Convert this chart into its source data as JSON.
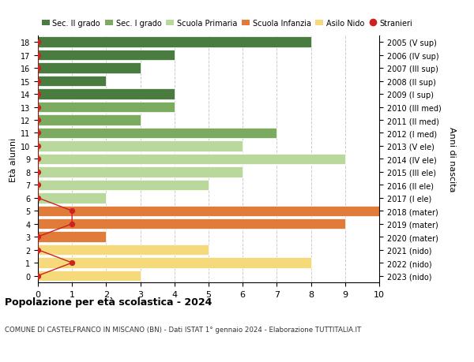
{
  "ages": [
    18,
    17,
    16,
    15,
    14,
    13,
    12,
    11,
    10,
    9,
    8,
    7,
    6,
    5,
    4,
    3,
    2,
    1,
    0
  ],
  "years": [
    "2005 (V sup)",
    "2006 (IV sup)",
    "2007 (III sup)",
    "2008 (II sup)",
    "2009 (I sup)",
    "2010 (III med)",
    "2011 (II med)",
    "2012 (I med)",
    "2013 (V ele)",
    "2014 (IV ele)",
    "2015 (III ele)",
    "2016 (II ele)",
    "2017 (I ele)",
    "2018 (mater)",
    "2019 (mater)",
    "2020 (mater)",
    "2021 (nido)",
    "2022 (nido)",
    "2023 (nido)"
  ],
  "bar_values": [
    8,
    4,
    3,
    2,
    4,
    4,
    3,
    7,
    6,
    9,
    6,
    5,
    2,
    10,
    9,
    2,
    5,
    8,
    3
  ],
  "bar_colors": [
    "#4a7c3f",
    "#4a7c3f",
    "#4a7c3f",
    "#4a7c3f",
    "#4a7c3f",
    "#7aab5e",
    "#7aab5e",
    "#7aab5e",
    "#b8d89c",
    "#b8d89c",
    "#b8d89c",
    "#b8d89c",
    "#b8d89c",
    "#e07b39",
    "#e07b39",
    "#e07b39",
    "#f5d97a",
    "#f5d97a",
    "#f5d97a"
  ],
  "stranieri_x": [
    0,
    0,
    0,
    0,
    0,
    0,
    0,
    0,
    0,
    0,
    0,
    0,
    0,
    1,
    1,
    0,
    0,
    1,
    0
  ],
  "title": "Popolazione per età scolastica - 2024",
  "subtitle": "COMUNE DI CASTELFRANCO IN MISCANO (BN) - Dati ISTAT 1° gennaio 2024 - Elaborazione TUTTITALIA.IT",
  "ylabel_left": "Età alunni",
  "ylabel_right": "Anni di nascita",
  "xlim": [
    0,
    10
  ],
  "legend_labels": [
    "Sec. II grado",
    "Sec. I grado",
    "Scuola Primaria",
    "Scuola Infanzia",
    "Asilo Nido",
    "Stranieri"
  ],
  "legend_colors": [
    "#4a7c3f",
    "#7aab5e",
    "#b8d89c",
    "#e07b39",
    "#f5d97a",
    "#cc2222"
  ],
  "stranieri_color": "#cc2222",
  "grid_color": "#cccccc",
  "bg_color": "#ffffff"
}
